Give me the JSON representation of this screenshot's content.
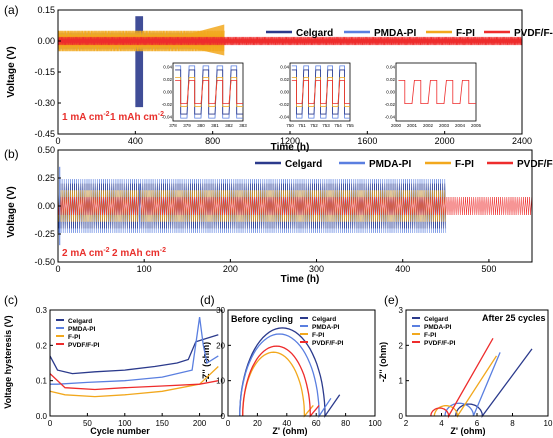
{
  "chart_data": [
    {
      "panel": "(a)",
      "type": "line",
      "xlabel": "Time (h)",
      "ylabel": "Voltage (V)",
      "xlim": [
        0,
        2400
      ],
      "ylim": [
        -0.45,
        0.15
      ],
      "xticks": [
        "0",
        "400",
        "800",
        "1200",
        "1600",
        "2000",
        "2400"
      ],
      "yticks": [
        "0.15",
        "0.00",
        "-0.15",
        "-0.30",
        "-0.45"
      ],
      "annotation_left": "1 mA cm",
      "annotation_right": "1 mAh cm",
      "annotation_sup": "-2",
      "legend": [
        "Celgard",
        "PMDA-PI",
        "F-PI",
        "PVDF/F-PI"
      ],
      "series": [
        {
          "name": "Celgard",
          "end_h": 450,
          "amplitude": 0.03,
          "spike_at": 410,
          "spike_min": -0.32,
          "spike_max": 0.12
        },
        {
          "name": "PMDA-PI",
          "end_h": 760,
          "amplitude": 0.04
        },
        {
          "name": "F-PI",
          "end_h": 860,
          "amplitude": 0.05
        },
        {
          "name": "PVDF/F-PI",
          "end_h": 2400,
          "amplitude": 0.02
        }
      ],
      "insets": [
        {
          "xticks": [
            "378",
            "379",
            "380",
            "381",
            "382",
            "383"
          ],
          "yticks": [
            "0.04",
            "0.02",
            "0.00",
            "-0.02",
            "-0.04"
          ]
        },
        {
          "xticks": [
            "750",
            "751",
            "752",
            "753",
            "754",
            "755"
          ],
          "yticks": [
            "0.04",
            "0.02",
            "0.00",
            "-0.02",
            "-0.04"
          ]
        },
        {
          "xticks": [
            "2000",
            "2001",
            "2002",
            "2003",
            "2004",
            "2005"
          ],
          "yticks": [
            "0.04",
            "0.02",
            "0.00",
            "-0.02",
            "-0.04"
          ]
        }
      ]
    },
    {
      "panel": "(b)",
      "type": "line",
      "xlabel": "Time (h)",
      "ylabel": "Voltage (V)",
      "xlim": [
        0,
        550
      ],
      "ylim": [
        -0.5,
        0.5
      ],
      "xticks": [
        "0",
        "100",
        "200",
        "300",
        "400",
        "500"
      ],
      "yticks": [
        "0.50",
        "0.25",
        "0.00",
        "-0.25",
        "-0.50"
      ],
      "annotation_left": "2 mA cm",
      "annotation_right": "2 mAh cm",
      "annotation_sup": "-2",
      "legend": [
        "Celgard",
        "PMDA-PI",
        "F-PI",
        "PVDF/F-PI"
      ],
      "series": [
        {
          "name": "Celgard",
          "end_h": 450,
          "amplitude": 0.2
        },
        {
          "name": "PMDA-PI",
          "end_h": 450,
          "amplitude": 0.24
        },
        {
          "name": "F-PI",
          "end_h": 450,
          "amplitude": 0.14
        },
        {
          "name": "PVDF/F-PI",
          "end_h": 550,
          "amplitude": 0.08
        }
      ]
    },
    {
      "panel": "(c)",
      "type": "line",
      "xlabel": "Cycle number",
      "ylabel": "Voltage hysteresis (V)",
      "xlim": [
        0,
        230
      ],
      "ylim": [
        0.0,
        0.3
      ],
      "xticks": [
        "0",
        "50",
        "100",
        "150",
        "200"
      ],
      "yticks": [
        "0.0",
        "0.1",
        "0.2",
        "0.3"
      ],
      "legend": [
        "Celgard",
        "PMDA-PI",
        "F-PI",
        "PVDF/F-PI"
      ],
      "series": [
        {
          "name": "Celgard",
          "x": [
            0,
            10,
            30,
            60,
            100,
            140,
            170,
            185,
            195,
            210,
            225
          ],
          "values": [
            0.17,
            0.13,
            0.12,
            0.125,
            0.13,
            0.14,
            0.15,
            0.16,
            0.21,
            0.22,
            0.23
          ]
        },
        {
          "name": "PMDA-PI",
          "x": [
            0,
            10,
            50,
            100,
            150,
            190,
            200,
            205,
            210,
            225
          ],
          "values": [
            0.09,
            0.09,
            0.095,
            0.1,
            0.11,
            0.13,
            0.28,
            0.2,
            0.15,
            0.17
          ]
        },
        {
          "name": "F-PI",
          "x": [
            0,
            20,
            60,
            100,
            150,
            200,
            225
          ],
          "values": [
            0.07,
            0.06,
            0.055,
            0.06,
            0.07,
            0.09,
            0.14
          ]
        },
        {
          "name": "PVDF/F-PI",
          "x": [
            0,
            20,
            60,
            100,
            150,
            200,
            225
          ],
          "values": [
            0.12,
            0.08,
            0.075,
            0.08,
            0.085,
            0.09,
            0.1
          ]
        }
      ]
    },
    {
      "panel": "(d)",
      "type": "line",
      "title": "Before cycling",
      "xlabel": "Z' (ohm)",
      "ylabel": "-Z'' (ohm)",
      "xlim": [
        0,
        100
      ],
      "ylim": [
        0,
        30
      ],
      "xticks": [
        "0",
        "20",
        "40",
        "60",
        "80",
        "100"
      ],
      "yticks": [
        "0",
        "10",
        "20",
        "30"
      ],
      "legend": [
        "Celgard",
        "PMDA-PI",
        "F-PI",
        "PVDF/F-PI"
      ],
      "series": [
        {
          "name": "Celgard",
          "r_start": 8,
          "r_end": 66,
          "tail_to_x": 76,
          "tail_to_y": 6
        },
        {
          "name": "PMDA-PI",
          "r_start": 8,
          "r_end": 62,
          "tail_to_x": 70,
          "tail_to_y": 5
        },
        {
          "name": "F-PI",
          "r_start": 10,
          "r_end": 52,
          "tail_to_x": 58,
          "tail_to_y": 3
        },
        {
          "name": "PVDF/F-PI",
          "r_start": 10,
          "r_end": 56,
          "tail_to_x": 62,
          "tail_to_y": 3
        }
      ]
    },
    {
      "panel": "(e)",
      "type": "line",
      "title": "After 25 cycles",
      "xlabel": "Z' (ohm)",
      "ylabel": "-Z'' (ohm)",
      "xlim": [
        2,
        10
      ],
      "ylim": [
        0,
        3
      ],
      "xticks": [
        "2",
        "4",
        "6",
        "8",
        "10"
      ],
      "yticks": [
        "0",
        "1",
        "2",
        "3"
      ],
      "legend": [
        "Celgard",
        "PMDA-PI",
        "F-PI",
        "PVDF/F-PI"
      ],
      "series": [
        {
          "name": "Celgard",
          "r_start": 4.8,
          "r_end": 6.3,
          "tail_to_x": 9.1,
          "tail_to_y": 1.9
        },
        {
          "name": "PMDA-PI",
          "r_start": 4.2,
          "r_end": 5.8,
          "tail_to_x": 7.3,
          "tail_to_y": 1.8
        },
        {
          "name": "F-PI",
          "r_start": 3.6,
          "r_end": 4.9,
          "tail_to_x": 7.1,
          "tail_to_y": 1.7
        },
        {
          "name": "PVDF/F-PI",
          "r_start": 3.4,
          "r_end": 4.4,
          "tail_to_x": 6.9,
          "tail_to_y": 2.2
        }
      ]
    }
  ],
  "colors": {
    "Celgard": "#2b3a8c",
    "PMDA-PI": "#5a7fe0",
    "F-PI": "#f2a81d",
    "PVDF/F-PI": "#ee2c2c",
    "annotation": "#e8302c"
  }
}
